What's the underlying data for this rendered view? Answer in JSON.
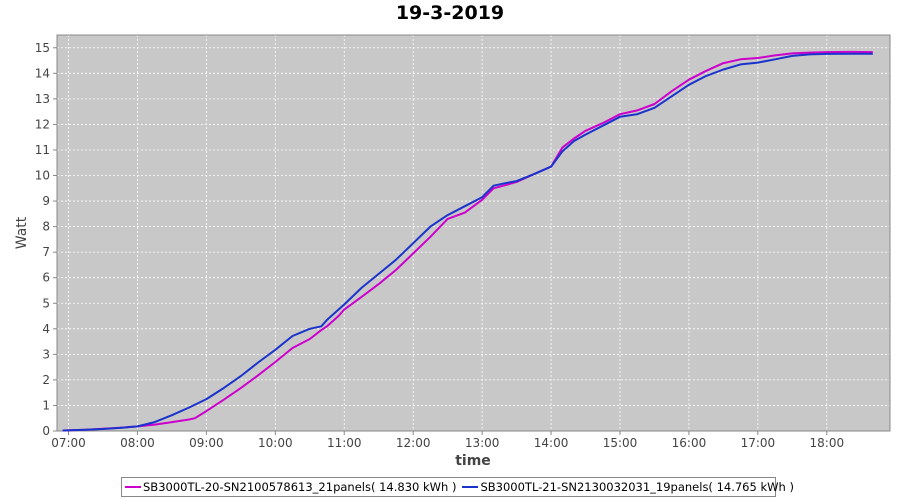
{
  "chart_data": {
    "type": "line",
    "title": "19-3-2019",
    "xlabel": "time",
    "ylabel": "Watt",
    "x_ticks": [
      "07:00",
      "08:00",
      "09:00",
      "10:00",
      "11:00",
      "12:00",
      "13:00",
      "14:00",
      "15:00",
      "16:00",
      "17:00",
      "18:00"
    ],
    "y_ticks": [
      "0",
      "1",
      "2",
      "3",
      "4",
      "5",
      "6",
      "7",
      "8",
      "9",
      "10",
      "11",
      "12",
      "13",
      "14",
      "15"
    ],
    "xlim": [
      "06:50",
      "18:55"
    ],
    "ylim": [
      0,
      15.5
    ],
    "grid": true,
    "legend_position": "bottom",
    "series": [
      {
        "name": "SB3000TL-20-SN2100578613_21panels( 14.830 kWh )",
        "color": "#cc00cc",
        "x": [
          "06:55",
          "07:15",
          "07:30",
          "07:45",
          "08:00",
          "08:15",
          "08:30",
          "08:45",
          "08:50",
          "09:00",
          "09:15",
          "09:30",
          "09:45",
          "10:00",
          "10:15",
          "10:30",
          "10:40",
          "10:45",
          "10:55",
          "11:00",
          "11:15",
          "11:30",
          "11:45",
          "12:00",
          "12:15",
          "12:30",
          "12:45",
          "13:00",
          "13:10",
          "13:20",
          "13:30",
          "13:45",
          "14:00",
          "14:10",
          "14:20",
          "14:30",
          "14:45",
          "15:00",
          "15:15",
          "15:30",
          "15:45",
          "16:00",
          "16:15",
          "16:30",
          "16:45",
          "17:00",
          "17:15",
          "17:30",
          "17:45",
          "18:00",
          "18:20",
          "18:40"
        ],
        "y": [
          0.02,
          0.05,
          0.09,
          0.13,
          0.18,
          0.25,
          0.35,
          0.45,
          0.5,
          0.78,
          1.22,
          1.68,
          2.18,
          2.7,
          3.25,
          3.6,
          3.95,
          4.1,
          4.5,
          4.75,
          5.25,
          5.75,
          6.3,
          6.95,
          7.6,
          8.3,
          8.55,
          9.05,
          9.5,
          9.62,
          9.75,
          10.05,
          10.35,
          11.1,
          11.45,
          11.75,
          12.05,
          12.4,
          12.55,
          12.8,
          13.3,
          13.75,
          14.1,
          14.4,
          14.55,
          14.6,
          14.7,
          14.78,
          14.81,
          14.83,
          14.84,
          14.83
        ]
      },
      {
        "name": "SB3000TL-21-SN2130032031_19panels( 14.765 kWh )",
        "color": "#1a33cc",
        "x": [
          "06:55",
          "07:15",
          "07:30",
          "07:45",
          "08:00",
          "08:15",
          "08:30",
          "08:45",
          "09:00",
          "09:15",
          "09:30",
          "09:45",
          "10:00",
          "10:15",
          "10:30",
          "10:40",
          "10:45",
          "11:00",
          "11:15",
          "11:30",
          "11:45",
          "12:00",
          "12:15",
          "12:30",
          "12:45",
          "13:00",
          "13:10",
          "13:20",
          "13:30",
          "13:45",
          "14:00",
          "14:10",
          "14:20",
          "14:30",
          "14:45",
          "15:00",
          "15:15",
          "15:30",
          "15:45",
          "16:00",
          "16:15",
          "16:30",
          "16:45",
          "17:00",
          "17:15",
          "17:30",
          "17:45",
          "18:00",
          "18:20",
          "18:40"
        ],
        "y": [
          0.02,
          0.05,
          0.08,
          0.12,
          0.18,
          0.35,
          0.62,
          0.92,
          1.25,
          1.68,
          2.15,
          2.68,
          3.18,
          3.72,
          4.0,
          4.1,
          4.35,
          4.95,
          5.6,
          6.15,
          6.7,
          7.35,
          8.0,
          8.45,
          8.8,
          9.15,
          9.6,
          9.7,
          9.78,
          10.05,
          10.35,
          10.95,
          11.35,
          11.6,
          11.95,
          12.3,
          12.4,
          12.65,
          13.1,
          13.55,
          13.9,
          14.15,
          14.35,
          14.42,
          14.55,
          14.68,
          14.74,
          14.76,
          14.77,
          14.77
        ]
      }
    ]
  }
}
